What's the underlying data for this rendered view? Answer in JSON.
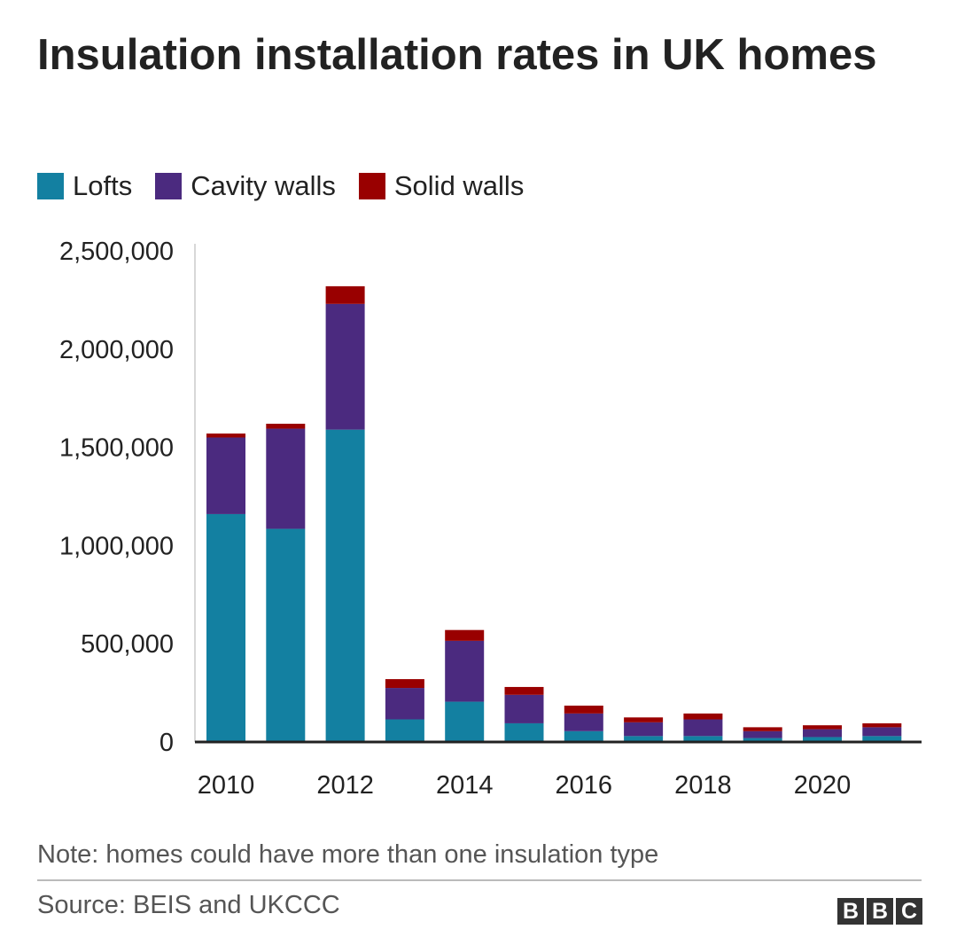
{
  "chart_data": {
    "type": "bar",
    "stacked": true,
    "title": "Insulation installation rates in UK homes",
    "categories": [
      2010,
      2011,
      2012,
      2013,
      2014,
      2015,
      2016,
      2017,
      2018,
      2019,
      2020,
      2021
    ],
    "x_tick_labels": [
      "2010",
      "2012",
      "2014",
      "2016",
      "2018",
      "2020"
    ],
    "series": [
      {
        "name": "Lofts",
        "color": "#1380a1",
        "values": [
          1160000,
          1085000,
          1590000,
          115000,
          205000,
          95000,
          55000,
          30000,
          30000,
          20000,
          25000,
          30000
        ]
      },
      {
        "name": "Cavity walls",
        "color": "#4b2a7f",
        "values": [
          390000,
          510000,
          640000,
          160000,
          310000,
          145000,
          90000,
          70000,
          85000,
          35000,
          40000,
          45000
        ]
      },
      {
        "name": "Solid walls",
        "color": "#990000",
        "values": [
          20000,
          25000,
          90000,
          45000,
          55000,
          40000,
          40000,
          25000,
          30000,
          20000,
          20000,
          20000
        ]
      }
    ],
    "ylim": [
      0,
      2500000
    ],
    "y_ticks": [
      0,
      500000,
      1000000,
      1500000,
      2000000,
      2500000
    ],
    "y_tick_labels": [
      "0",
      "500,000",
      "1,000,000",
      "1,500,000",
      "2,000,000",
      "2,500,000"
    ],
    "xlabel": "",
    "ylabel": "",
    "legend": "top-left"
  },
  "header": {
    "title": "Insulation installation rates in UK homes"
  },
  "legend": {
    "items": [
      {
        "label": "Lofts",
        "color": "#1380a1"
      },
      {
        "label": "Cavity walls",
        "color": "#4b2a7f"
      },
      {
        "label": "Solid walls",
        "color": "#990000"
      }
    ]
  },
  "footer": {
    "note": "Note: homes could have more than one insulation type",
    "source": "Source: BEIS and UKCCC",
    "logo_letters": [
      "B",
      "B",
      "C"
    ]
  }
}
